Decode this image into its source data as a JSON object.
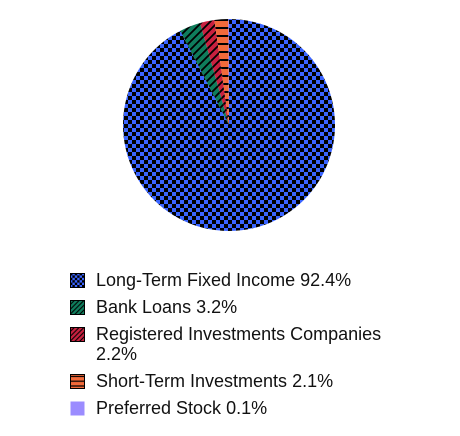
{
  "chart_data": {
    "type": "pie",
    "categories": [
      "Long-Term Fixed Income",
      "Bank Loans",
      "Registered Investments Companies",
      "Short-Term Investments",
      "Preferred Stock"
    ],
    "values": [
      92.4,
      3.2,
      2.2,
      2.1,
      0.1
    ],
    "value_labels": [
      "92.4%",
      "3.2%",
      "2.2%",
      "2.1%",
      "0.1%"
    ],
    "colors": [
      "#3a64ff",
      "#0f7d5c",
      "#c9203f",
      "#f26a3a",
      "#9b8cff"
    ],
    "patterns": [
      "checker",
      "diagonal",
      "diagonal",
      "horizontal",
      "solid"
    ]
  }
}
